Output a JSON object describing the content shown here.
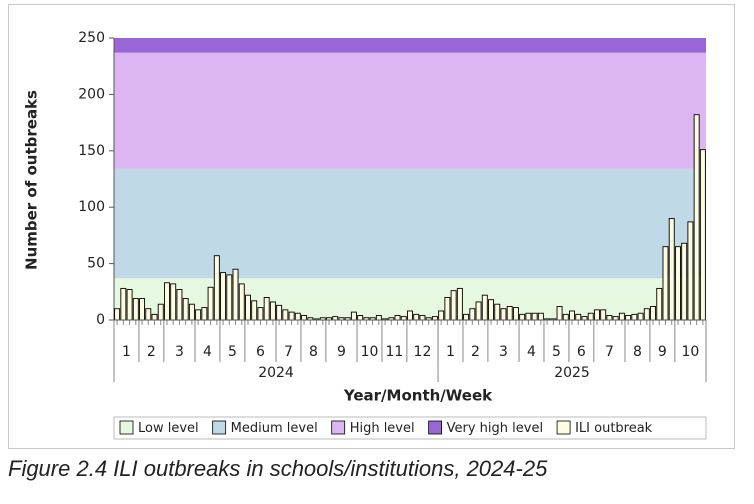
{
  "chart_data": {
    "type": "bar",
    "caption": "Figure 2.4 ILI outbreaks in schools/institutions, 2024-25",
    "y_label": "Number of outbreaks",
    "x_label": "Year/Month/Week",
    "ylim": [
      0,
      250
    ],
    "yticks": [
      0,
      50,
      100,
      150,
      200,
      250
    ],
    "levels": [
      {
        "name": "Low level",
        "color": "#e6f8df",
        "from": 0,
        "to": 37
      },
      {
        "name": "Medium level",
        "color": "#bfd9e6",
        "from": 37,
        "to": 134
      },
      {
        "name": "High level",
        "color": "#dcb6f2",
        "from": 134,
        "to": 237
      },
      {
        "name": "Very high level",
        "color": "#9966d6",
        "from": 237,
        "to": 250
      }
    ],
    "series": [
      {
        "name": "ILI outbreak",
        "color": "#fdfbe0",
        "years": [
          {
            "label": "2024",
            "months": [
              {
                "label": "1",
                "values": [
                  10,
                  28,
                  27,
                  19
                ]
              },
              {
                "label": "2",
                "values": [
                  19,
                  10,
                  5,
                  14
                ]
              },
              {
                "label": "3",
                "values": [
                  33,
                  32,
                  27,
                  19,
                  14
                ]
              },
              {
                "label": "4",
                "values": [
                  9,
                  11,
                  29,
                  57
                ]
              },
              {
                "label": "5",
                "values": [
                  42,
                  40,
                  45,
                  32
                ]
              },
              {
                "label": "6",
                "values": [
                  22,
                  17,
                  11,
                  20,
                  16
                ]
              },
              {
                "label": "7",
                "values": [
                  13,
                  9,
                  7,
                  6
                ]
              },
              {
                "label": "8",
                "values": [
                  4,
                  2,
                  1,
                  2
                ]
              },
              {
                "label": "9",
                "values": [
                  2,
                  3,
                  2,
                  2,
                  7
                ]
              },
              {
                "label": "10",
                "values": [
                  4,
                  2,
                  2,
                  4
                ]
              },
              {
                "label": "11",
                "values": [
                  1,
                  2,
                  4,
                  3
                ]
              },
              {
                "label": "12",
                "values": [
                  8,
                  5,
                  4,
                  2,
                  3
                ]
              }
            ]
          },
          {
            "label": "2025",
            "months": [
              {
                "label": "1",
                "values": [
                  8,
                  20,
                  26,
                  28
                ]
              },
              {
                "label": "2",
                "values": [
                  5,
                  10,
                  16,
                  22
                ]
              },
              {
                "label": "3",
                "values": [
                  18,
                  14,
                  10,
                  12,
                  11
                ]
              },
              {
                "label": "4",
                "values": [
                  5,
                  6,
                  6,
                  6
                ]
              },
              {
                "label": "5",
                "values": [
                  1,
                  1,
                  12,
                  5
                ]
              },
              {
                "label": "6",
                "values": [
                  8,
                  5,
                  3,
                  6
                ]
              },
              {
                "label": "7",
                "values": [
                  9,
                  9,
                  4,
                  3,
                  6
                ]
              },
              {
                "label": "8",
                "values": [
                  4,
                  5,
                  6,
                  10
                ]
              },
              {
                "label": "9",
                "values": [
                  12,
                  28,
                  65,
                  90
                ]
              },
              {
                "label": "10",
                "values": [
                  65,
                  68,
                  87,
                  182,
                  151
                ]
              }
            ]
          }
        ]
      }
    ]
  }
}
